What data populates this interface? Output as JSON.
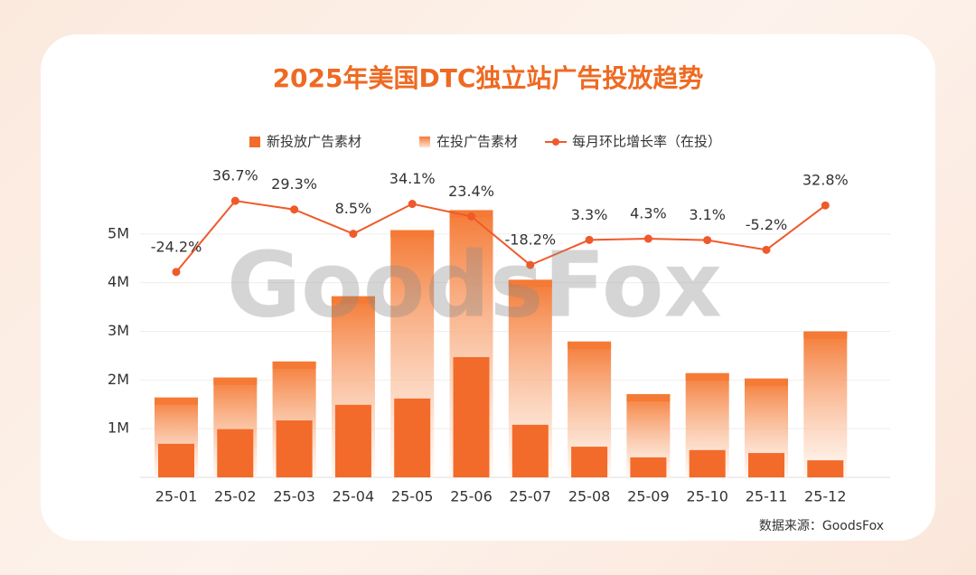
{
  "chart_data": {
    "type": "bar",
    "title": "2025年美国DTC独立站广告投放趋势",
    "watermark": "GoodsFox",
    "source": "数据来源：GoodsFox",
    "categories": [
      "25-01",
      "25-02",
      "25-03",
      "25-04",
      "25-05",
      "25-06",
      "25-07",
      "25-08",
      "25-09",
      "25-10",
      "25-11",
      "25-12"
    ],
    "series": [
      {
        "name": "新投放广告素材",
        "type": "bar",
        "color": "#f26b2a",
        "values": [
          690000,
          990000,
          1170000,
          1490000,
          1620000,
          2470000,
          1080000,
          630000,
          410000,
          560000,
          500000,
          350000
        ]
      },
      {
        "name": "在投广告素材",
        "type": "bar",
        "color": "#f47a35",
        "values": [
          1640000,
          2050000,
          2380000,
          3720000,
          5080000,
          5490000,
          4060000,
          2790000,
          1710000,
          2140000,
          2030000,
          3000000
        ]
      },
      {
        "name": "每月环比增长率（在投）",
        "type": "line",
        "axis": "y2",
        "color": "#f0592a",
        "values": [
          -24.2,
          36.7,
          29.3,
          8.5,
          34.1,
          23.4,
          -18.2,
          3.3,
          4.3,
          3.1,
          -5.2,
          32.8
        ],
        "value_labels": [
          "-24.2%",
          "36.7%",
          "29.3%",
          "8.5%",
          "34.1%",
          "23.4%",
          "-18.2%",
          "3.3%",
          "4.3%",
          "3.1%",
          "-5.2%",
          "32.8%"
        ]
      }
    ],
    "ylim": [
      0,
      6000000
    ],
    "yticks": [
      {
        "value": 1000000,
        "label": "1M"
      },
      {
        "value": 2000000,
        "label": "2M"
      },
      {
        "value": 3000000,
        "label": "3M"
      },
      {
        "value": 4000000,
        "label": "4M"
      },
      {
        "value": 5000000,
        "label": "5M"
      }
    ],
    "y2lim": [
      -200,
      50
    ],
    "grid": true
  }
}
